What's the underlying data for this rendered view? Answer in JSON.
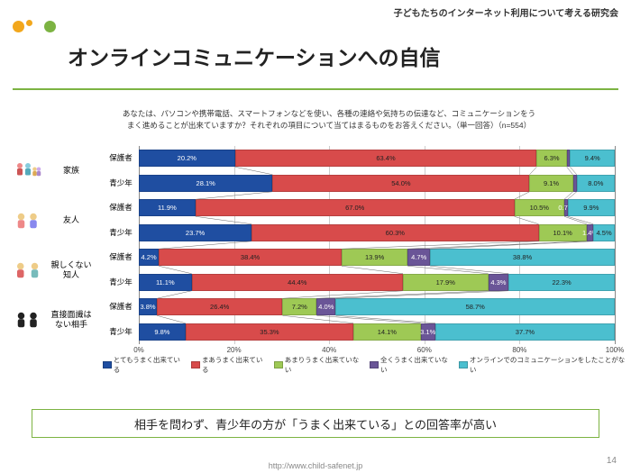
{
  "header_label": "子どもたちのインターネット利用について考える研究会",
  "title": "オンラインコミュニケーションへの自信",
  "question": "あなたは、パソコンや携帯電話、スマートフォンなどを使い、各種の連絡や気持ちの伝達など、コミュニケーションをうまく進めることが出来ていますか？それぞれの項目について当てはまるものをお答えください。（単一回答）（n=554）",
  "accent_color": "#7cb342",
  "colors": {
    "c1": "#1f4ea1",
    "c2": "#d84b4b",
    "c3": "#9ec955",
    "c4": "#6a5597",
    "c5": "#4bbfcf"
  },
  "legend": [
    {
      "label": "とてもうまく出来ている",
      "c": "c1"
    },
    {
      "label": "まあうまく出来ている",
      "c": "c2"
    },
    {
      "label": "あまりうまく出来ていない",
      "c": "c3"
    },
    {
      "label": "全くうまく出来ていない",
      "c": "c4"
    },
    {
      "label": "オンラインでのコミュニケーションをしたことがない",
      "c": "c5"
    }
  ],
  "groups": [
    {
      "label": "家族",
      "icon": "family"
    },
    {
      "label": "友人",
      "icon": "friends"
    },
    {
      "label": "親しくない\n知人",
      "icon": "acquaint"
    },
    {
      "label": "直接面識は\nない相手",
      "icon": "stranger"
    }
  ],
  "sub_labels": [
    "保護者",
    "青少年"
  ],
  "bars": [
    [
      {
        "v": 20.2,
        "t": "20.2%"
      },
      {
        "v": 63.4,
        "t": "63.4%"
      },
      {
        "v": 6.3,
        "t": "6.3%"
      },
      {
        "v": 0.7,
        "t": ""
      },
      {
        "v": 9.4,
        "t": "9.4%"
      }
    ],
    [
      {
        "v": 28.1,
        "t": "28.1%"
      },
      {
        "v": 54.0,
        "t": "54.0%"
      },
      {
        "v": 9.1,
        "t": "9.1%"
      },
      {
        "v": 0.8,
        "t": ""
      },
      {
        "v": 8.0,
        "t": "8.0%"
      }
    ],
    [
      {
        "v": 11.9,
        "t": "11.9%"
      },
      {
        "v": 67.0,
        "t": "67.0%"
      },
      {
        "v": 10.5,
        "t": "10.5%"
      },
      {
        "v": 0.7,
        "t": "0.7%"
      },
      {
        "v": 9.9,
        "t": "9.9%"
      }
    ],
    [
      {
        "v": 23.7,
        "t": "23.7%"
      },
      {
        "v": 60.3,
        "t": "60.3%"
      },
      {
        "v": 10.1,
        "t": "10.1%"
      },
      {
        "v": 1.4,
        "t": "1.4%"
      },
      {
        "v": 4.5,
        "t": "4.5%"
      }
    ],
    [
      {
        "v": 4.2,
        "t": "4.2%"
      },
      {
        "v": 38.4,
        "t": "38.4%"
      },
      {
        "v": 13.9,
        "t": "13.9%"
      },
      {
        "v": 4.7,
        "t": "4.7%"
      },
      {
        "v": 38.8,
        "t": "38.8%"
      }
    ],
    [
      {
        "v": 11.1,
        "t": "11.1%"
      },
      {
        "v": 44.4,
        "t": "44.4%"
      },
      {
        "v": 17.9,
        "t": "17.9%"
      },
      {
        "v": 4.3,
        "t": "4.3%"
      },
      {
        "v": 22.3,
        "t": "22.3%"
      }
    ],
    [
      {
        "v": 3.8,
        "t": "3.8%"
      },
      {
        "v": 26.4,
        "t": "26.4%"
      },
      {
        "v": 7.2,
        "t": "7.2%"
      },
      {
        "v": 4.0,
        "t": "4.0%"
      },
      {
        "v": 58.7,
        "t": "58.7%"
      }
    ],
    [
      {
        "v": 9.8,
        "t": "9.8%"
      },
      {
        "v": 35.3,
        "t": "35.3%"
      },
      {
        "v": 14.1,
        "t": "14.1%"
      },
      {
        "v": 3.1,
        "t": "3.1%"
      },
      {
        "v": 37.7,
        "t": "37.7%"
      }
    ]
  ],
  "x_ticks": [
    "0%",
    "20%",
    "40%",
    "60%",
    "80%",
    "100%"
  ],
  "callout": "相手を問わず、青少年の方が「うまく出来ている」との回答率が高い",
  "page_num": "14",
  "footer_url": "http://www.child-safenet.jp"
}
